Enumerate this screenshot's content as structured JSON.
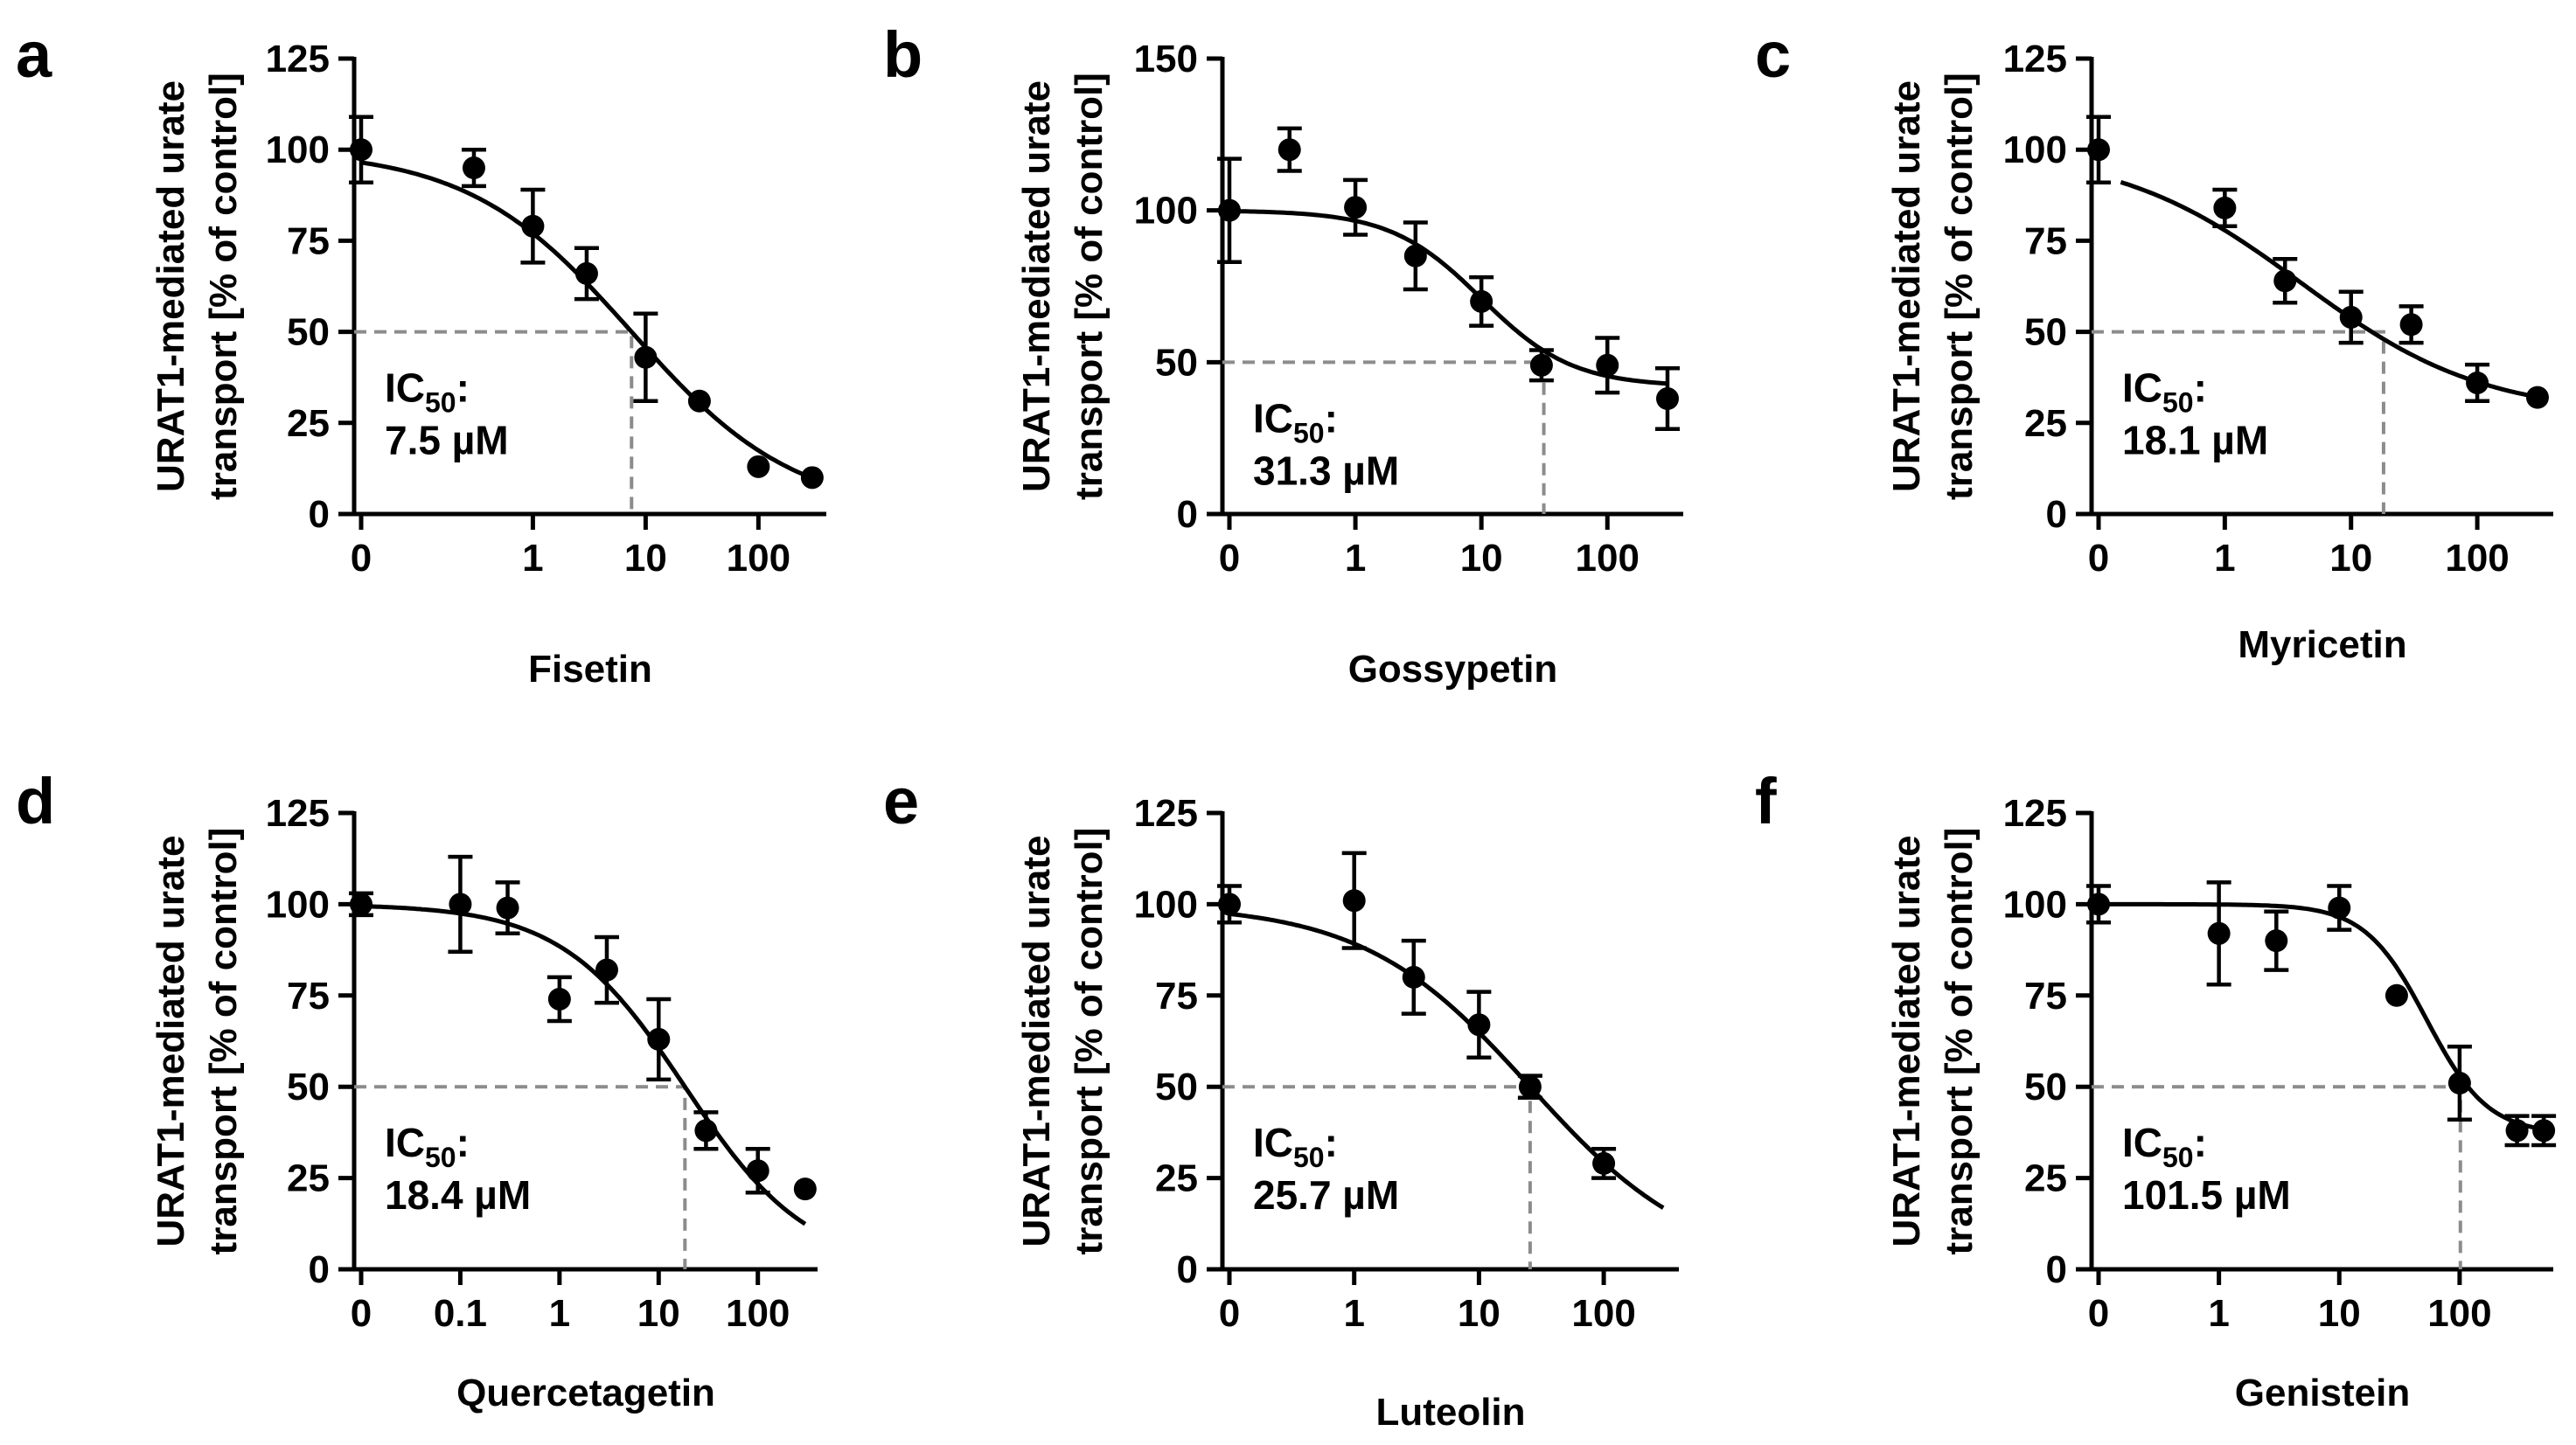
{
  "figure": {
    "y_axis_title_line1": "URAT1-mediated urate",
    "y_axis_title_line2": "transport [% of control]",
    "ic50_prefix": "IC",
    "ic50_subscript": "50",
    "ic50_suffix": ":"
  },
  "chart_data": [
    {
      "panel": "a",
      "type": "scatter",
      "xlabel": "Fisetin",
      "xscale": "log",
      "xlim": [
        0.03,
        400
      ],
      "ylim": [
        0,
        125
      ],
      "xticks": [
        {
          "v": 0.03,
          "label": "0"
        },
        {
          "v": 1,
          "label": "1"
        },
        {
          "v": 10,
          "label": "10"
        },
        {
          "v": 100,
          "label": "100"
        }
      ],
      "yticks": [
        0,
        25,
        50,
        75,
        100,
        125
      ],
      "points": [
        {
          "x": 0.03,
          "y": 100,
          "err": 9
        },
        {
          "x": 0.3,
          "y": 95,
          "err": 5
        },
        {
          "x": 1,
          "y": 79,
          "err": 10
        },
        {
          "x": 3,
          "y": 66,
          "err": 7
        },
        {
          "x": 10,
          "y": 43,
          "err": 12
        },
        {
          "x": 30,
          "y": 31,
          "err": 0
        },
        {
          "x": 100,
          "y": 13,
          "err": 0
        },
        {
          "x": 300,
          "y": 10,
          "err": 0
        }
      ],
      "fit": {
        "top": 100,
        "bottom": 0,
        "ic50": 7.5,
        "hill": 0.6,
        "xmin": 0.03,
        "xmax": 300
      },
      "ic50_value": "7.5 µM",
      "guide_y": 50
    },
    {
      "panel": "b",
      "type": "scatter",
      "xlabel": "Gossypetin",
      "xscale": "log",
      "xlim": [
        0.1,
        400
      ],
      "ylim": [
        0,
        150
      ],
      "xticks": [
        {
          "v": 0.1,
          "label": "0"
        },
        {
          "v": 1,
          "label": "1"
        },
        {
          "v": 10,
          "label": "10"
        },
        {
          "v": 100,
          "label": "100"
        }
      ],
      "yticks": [
        0,
        50,
        100,
        150
      ],
      "points": [
        {
          "x": 0.1,
          "y": 100,
          "err": 17
        },
        {
          "x": 0.3,
          "y": 120,
          "err": 7
        },
        {
          "x": 1,
          "y": 101,
          "err": 9
        },
        {
          "x": 3,
          "y": 85,
          "err": 11
        },
        {
          "x": 10,
          "y": 70,
          "err": 8
        },
        {
          "x": 30,
          "y": 49,
          "err": 5
        },
        {
          "x": 100,
          "y": 49,
          "err": 9
        },
        {
          "x": 300,
          "y": 38,
          "err": 10
        }
      ],
      "fit": {
        "top": 100,
        "bottom": 42,
        "ic50": 10,
        "hill": 1.2,
        "xmin": 0.1,
        "xmax": 300
      },
      "ic50_value": "31.3 µM",
      "guide_y": 50,
      "guide_x": 31.3
    },
    {
      "panel": "c",
      "type": "scatter",
      "xlabel": "Myricetin",
      "xscale": "log",
      "xlim": [
        0.1,
        400
      ],
      "ylim": [
        0,
        125
      ],
      "xticks": [
        {
          "v": 0.1,
          "label": "0"
        },
        {
          "v": 1,
          "label": "1"
        },
        {
          "v": 10,
          "label": "10"
        },
        {
          "v": 100,
          "label": "100"
        }
      ],
      "yticks": [
        0,
        25,
        50,
        75,
        100,
        125
      ],
      "points": [
        {
          "x": 0.1,
          "y": 100,
          "err": 9
        },
        {
          "x": 1,
          "y": 84,
          "err": 5
        },
        {
          "x": 3,
          "y": 64,
          "err": 6
        },
        {
          "x": 10,
          "y": 54,
          "err": 7
        },
        {
          "x": 30,
          "y": 52,
          "err": 5
        },
        {
          "x": 100,
          "y": 36,
          "err": 5
        },
        {
          "x": 300,
          "y": 32,
          "err": 0
        }
      ],
      "fit": {
        "top": 100,
        "bottom": 27,
        "ic50": 4,
        "hill": 0.6,
        "xmin": 0.15,
        "xmax": 300
      },
      "ic50_value": "18.1 µM",
      "guide_y": 50,
      "guide_x": 18.1
    },
    {
      "panel": "d",
      "type": "scatter",
      "xlabel": "Quercetagetin",
      "xscale": "log",
      "xlim": [
        0.01,
        400
      ],
      "ylim": [
        0,
        125
      ],
      "xticks": [
        {
          "v": 0.01,
          "label": "0"
        },
        {
          "v": 0.1,
          "label": "0.1"
        },
        {
          "v": 1,
          "label": "1"
        },
        {
          "v": 10,
          "label": "10"
        },
        {
          "v": 100,
          "label": "100"
        }
      ],
      "yticks": [
        0,
        25,
        50,
        75,
        100,
        125
      ],
      "points": [
        {
          "x": 0.01,
          "y": 100,
          "err": 3
        },
        {
          "x": 0.1,
          "y": 100,
          "err": 13
        },
        {
          "x": 0.3,
          "y": 99,
          "err": 7
        },
        {
          "x": 1,
          "y": 74,
          "err": 6
        },
        {
          "x": 3,
          "y": 82,
          "err": 9
        },
        {
          "x": 10,
          "y": 63,
          "err": 11
        },
        {
          "x": 30,
          "y": 38,
          "err": 5
        },
        {
          "x": 100,
          "y": 27,
          "err": 6
        },
        {
          "x": 300,
          "y": 22,
          "err": 0
        }
      ],
      "fit": {
        "top": 100,
        "bottom": 0,
        "ic50": 18.4,
        "hill": 0.7,
        "xmin": 0.01,
        "xmax": 300
      },
      "ic50_value": "18.4 µM",
      "guide_y": 50,
      "guide_x": 18.4
    },
    {
      "panel": "e",
      "type": "scatter",
      "xlabel": "Luteolin",
      "xscale": "log",
      "xlim": [
        0.1,
        400
      ],
      "ylim": [
        0,
        125
      ],
      "xticks": [
        {
          "v": 0.1,
          "label": "0"
        },
        {
          "v": 1,
          "label": "1"
        },
        {
          "v": 10,
          "label": "10"
        },
        {
          "v": 100,
          "label": "100"
        }
      ],
      "yticks": [
        0,
        25,
        50,
        75,
        100,
        125
      ],
      "points": [
        {
          "x": 0.1,
          "y": 100,
          "err": 5
        },
        {
          "x": 1,
          "y": 101,
          "err": 13
        },
        {
          "x": 3,
          "y": 80,
          "err": 10
        },
        {
          "x": 10,
          "y": 67,
          "err": 9
        },
        {
          "x": 25.7,
          "y": 50,
          "err": 3
        },
        {
          "x": 100,
          "y": 29,
          "err": 4
        }
      ],
      "fit": {
        "top": 100,
        "bottom": 0,
        "ic50": 25.7,
        "hill": 0.65,
        "xmin": 0.1,
        "xmax": 300
      },
      "ic50_value": "25.7 µM",
      "guide_y": 50,
      "guide_x": 25.7
    },
    {
      "panel": "f",
      "type": "scatter",
      "xlabel": "Genistein",
      "xscale": "log",
      "xlim": [
        0.1,
        600
      ],
      "ylim": [
        0,
        125
      ],
      "xticks": [
        {
          "v": 0.1,
          "label": "0"
        },
        {
          "v": 1,
          "label": "1"
        },
        {
          "v": 10,
          "label": "10"
        },
        {
          "v": 100,
          "label": "100"
        }
      ],
      "yticks": [
        0,
        25,
        50,
        75,
        100,
        125
      ],
      "points": [
        {
          "x": 0.1,
          "y": 100,
          "err": 5
        },
        {
          "x": 1,
          "y": 92,
          "err": 14
        },
        {
          "x": 3,
          "y": 90,
          "err": 8
        },
        {
          "x": 10,
          "y": 99,
          "err": 6
        },
        {
          "x": 30,
          "y": 75,
          "err": 0
        },
        {
          "x": 100,
          "y": 51,
          "err": 10
        },
        {
          "x": 300,
          "y": 38,
          "err": 4
        },
        {
          "x": 500,
          "y": 38,
          "err": 4
        }
      ],
      "fit": {
        "top": 100,
        "bottom": 37,
        "ic50": 53,
        "hill": 1.7,
        "xmin": 0.1,
        "xmax": 500
      },
      "ic50_value": "101.5 µM",
      "guide_y": 50,
      "guide_x": 101.5
    }
  ]
}
